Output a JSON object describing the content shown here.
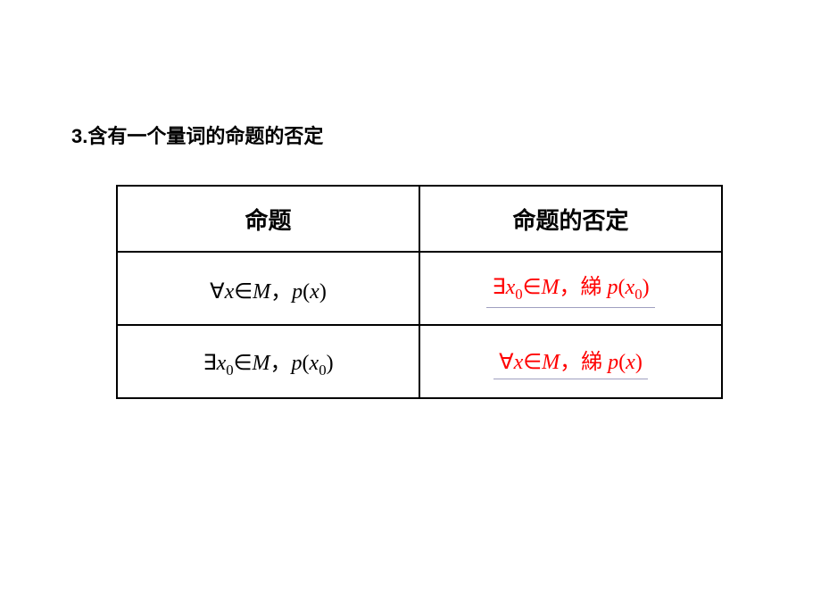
{
  "heading": "3.含有一个量词的命题的否定",
  "table": {
    "header": {
      "col1": "命题",
      "col2": "命题的否定"
    },
    "row1": {
      "left_html": "<span class='math'><span class='upright'>∀</span>x<span class='upright'>∈</span>M<span class='cjk'>，</span>p<span class='upright'>(</span>x<span class='upright'>)</span></span>",
      "right_html": "<span class='math red'><span class='upright'>∃</span>x<span class='sub'>0</span><span class='upright'>∈</span>M<span class='cjk'>，綈 </span>p<span class='upright'>(</span>x<span class='sub'>0</span><span class='upright'>)</span></span>"
    },
    "row2": {
      "left_html": "<span class='math'><span class='upright'>∃</span>x<span class='sub'>0</span><span class='upright'>∈</span>M<span class='cjk'>，</span>p<span class='upright'>(</span>x<span class='sub'>0</span><span class='upright'>)</span></span>",
      "right_html": "<span class='math red'><span class='upright'>∀</span>x<span class='upright'>∈</span>M<span class='cjk'>，綈 </span>p<span class='upright'>(</span>x<span class='upright'>)</span></span>"
    }
  },
  "colors": {
    "text": "#000000",
    "accent": "#ff0000",
    "underline": "#a0a0c0",
    "background": "#ffffff"
  }
}
